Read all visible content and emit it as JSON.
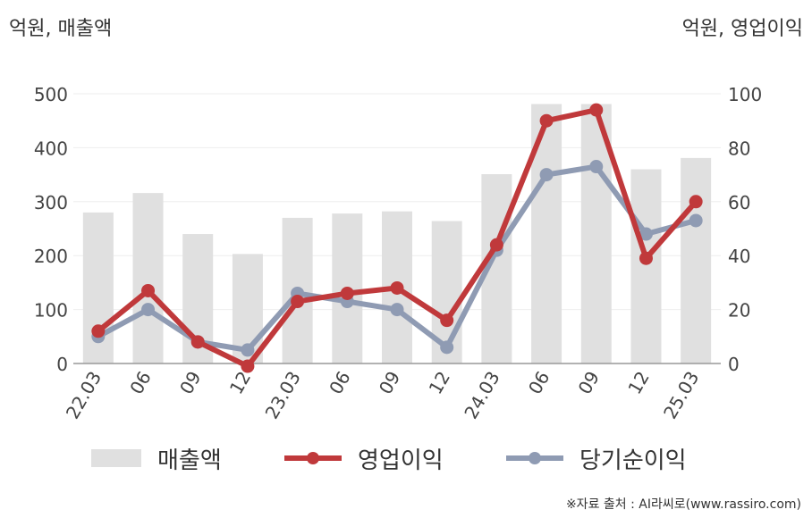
{
  "left_unit": "억원, 매출액",
  "right_unit": "억원, 영업이익",
  "source": "※자료 출처 : AI라씨로(www.rassiro.com)",
  "colors": {
    "revenue": "#e0e0e0",
    "operating_profit": "#c0393b",
    "net_profit": "#8f9bb3",
    "axis": "#999999",
    "grid": "#eeeeee"
  },
  "chart_data": {
    "type": "bar+line",
    "categories": [
      "22.03",
      "06",
      "09",
      "12",
      "23.03",
      "06",
      "09",
      "12",
      "24.03",
      "06",
      "09",
      "12",
      "25.03"
    ],
    "y_left": {
      "range": [
        0,
        500
      ],
      "ticks": [
        "0",
        "100",
        "200",
        "300",
        "400",
        "500"
      ]
    },
    "y_right": {
      "range": [
        0,
        100
      ],
      "ticks": [
        "0",
        "20",
        "40",
        "60",
        "80",
        "100"
      ]
    },
    "series": [
      {
        "name": "매출액",
        "type": "bar",
        "axis": "left",
        "values": [
          280,
          316,
          240,
          203,
          270,
          278,
          282,
          264,
          351,
          481,
          481,
          360,
          381
        ]
      },
      {
        "name": "영업이익",
        "type": "line",
        "axis": "right",
        "values": [
          12,
          27,
          8,
          -1,
          23,
          26,
          28,
          16,
          44,
          90,
          94,
          39,
          60
        ]
      },
      {
        "name": "당기순이익",
        "type": "line",
        "axis": "right",
        "values": [
          10,
          20,
          8,
          5,
          26,
          23,
          20,
          6,
          42,
          70,
          73,
          48,
          53
        ]
      }
    ],
    "legend_position": "bottom",
    "grid": true
  }
}
